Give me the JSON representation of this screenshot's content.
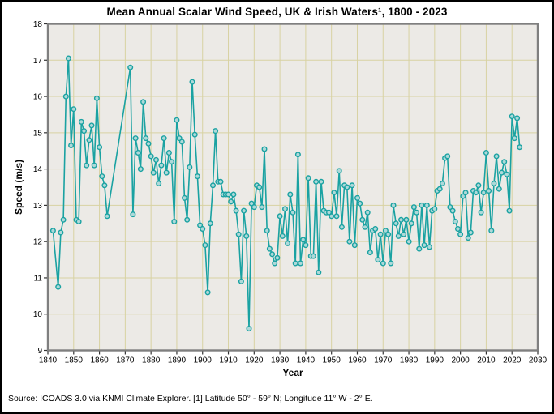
{
  "chart_data": {
    "type": "line",
    "title": "Mean Annual Scalar Wind Speed, UK & Irish Waters¹, 1800 - 2023",
    "xlabel": "Year",
    "ylabel": "Speed (m/s)",
    "source": "Source: ICOADS 3.0 via KNMI Climate Explorer. [1] Latitude 50° - 59° N; Longitude 11° W - 2° E.",
    "xlim": [
      1840,
      2030
    ],
    "ylim": [
      9,
      18
    ],
    "x_ticks": [
      1840,
      1850,
      1860,
      1870,
      1880,
      1890,
      1900,
      1910,
      1920,
      1930,
      1940,
      1950,
      1960,
      1970,
      1980,
      1990,
      2000,
      2010,
      2020,
      2030
    ],
    "y_ticks": [
      9,
      10,
      11,
      12,
      13,
      14,
      15,
      16,
      17,
      18
    ],
    "grid": true,
    "legend": "none",
    "colors": {
      "line": "#1aa2a2",
      "marker_fill": "#aed9d9",
      "grid": "#d8d2a2",
      "plot_bg": "#eceae6",
      "frame": "#7f7f7f",
      "tick": "#333333",
      "text": "#000000"
    },
    "series": [
      {
        "name": "Mean annual scalar wind speed",
        "points": [
          [
            1842,
            12.3
          ],
          [
            1844,
            10.75
          ],
          [
            1845,
            12.25
          ],
          [
            1846,
            12.6
          ],
          [
            1847,
            16.0
          ],
          [
            1848,
            17.05
          ],
          [
            1849,
            14.65
          ],
          [
            1850,
            15.65
          ],
          [
            1851,
            12.6
          ],
          [
            1852,
            12.55
          ],
          [
            1853,
            15.3
          ],
          [
            1854,
            15.05
          ],
          [
            1855,
            14.1
          ],
          [
            1856,
            14.8
          ],
          [
            1857,
            15.2
          ],
          [
            1858,
            14.1
          ],
          [
            1859,
            15.95
          ],
          [
            1860,
            14.6
          ],
          [
            1861,
            13.8
          ],
          [
            1862,
            13.55
          ],
          [
            1863,
            12.7
          ],
          [
            1872,
            16.8
          ],
          [
            1873,
            12.75
          ],
          [
            1874,
            14.85
          ],
          [
            1875,
            14.45
          ],
          [
            1876,
            14.0
          ],
          [
            1877,
            15.85
          ],
          [
            1878,
            14.85
          ],
          [
            1879,
            14.7
          ],
          [
            1880,
            14.35
          ],
          [
            1881,
            13.9
          ],
          [
            1882,
            14.25
          ],
          [
            1883,
            13.6
          ],
          [
            1884,
            14.1
          ],
          [
            1885,
            14.85
          ],
          [
            1886,
            13.9
          ],
          [
            1887,
            14.45
          ],
          [
            1888,
            14.2
          ],
          [
            1889,
            12.55
          ],
          [
            1890,
            15.35
          ],
          [
            1891,
            14.85
          ],
          [
            1892,
            14.75
          ],
          [
            1893,
            13.2
          ],
          [
            1894,
            12.6
          ],
          [
            1895,
            14.05
          ],
          [
            1896,
            16.4
          ],
          [
            1897,
            14.95
          ],
          [
            1898,
            13.8
          ],
          [
            1899,
            12.45
          ],
          [
            1900,
            12.35
          ],
          [
            1901,
            11.9
          ],
          [
            1902,
            10.6
          ],
          [
            1903,
            12.5
          ],
          [
            1904,
            13.55
          ],
          [
            1905,
            15.05
          ],
          [
            1906,
            13.65
          ],
          [
            1907,
            13.65
          ],
          [
            1908,
            13.3
          ],
          [
            1909,
            13.3
          ],
          [
            1910,
            13.3
          ],
          [
            1911,
            13.1
          ],
          [
            1912,
            13.3
          ],
          [
            1913,
            12.85
          ],
          [
            1914,
            12.2
          ],
          [
            1915,
            10.9
          ],
          [
            1916,
            12.85
          ],
          [
            1917,
            12.15
          ],
          [
            1918,
            9.6
          ],
          [
            1919,
            13.05
          ],
          [
            1920,
            12.95
          ],
          [
            1921,
            13.55
          ],
          [
            1922,
            13.5
          ],
          [
            1923,
            12.95
          ],
          [
            1924,
            14.55
          ],
          [
            1925,
            12.3
          ],
          [
            1926,
            11.8
          ],
          [
            1927,
            11.65
          ],
          [
            1928,
            11.4
          ],
          [
            1929,
            11.55
          ],
          [
            1930,
            12.7
          ],
          [
            1931,
            12.15
          ],
          [
            1932,
            12.9
          ],
          [
            1933,
            11.95
          ],
          [
            1934,
            13.3
          ],
          [
            1935,
            12.8
          ],
          [
            1936,
            11.4
          ],
          [
            1937,
            14.4
          ],
          [
            1938,
            11.4
          ],
          [
            1939,
            12.05
          ],
          [
            1940,
            11.9
          ],
          [
            1941,
            13.75
          ],
          [
            1942,
            11.6
          ],
          [
            1943,
            11.6
          ],
          [
            1944,
            13.65
          ],
          [
            1945,
            11.15
          ],
          [
            1946,
            13.65
          ],
          [
            1947,
            12.85
          ],
          [
            1948,
            12.8
          ],
          [
            1949,
            12.8
          ],
          [
            1950,
            12.7
          ],
          [
            1951,
            13.35
          ],
          [
            1952,
            12.7
          ],
          [
            1953,
            13.95
          ],
          [
            1954,
            12.4
          ],
          [
            1955,
            13.55
          ],
          [
            1956,
            13.5
          ],
          [
            1957,
            12.0
          ],
          [
            1958,
            13.55
          ],
          [
            1959,
            11.9
          ],
          [
            1960,
            13.2
          ],
          [
            1961,
            13.05
          ],
          [
            1962,
            12.6
          ],
          [
            1963,
            12.4
          ],
          [
            1964,
            12.8
          ],
          [
            1965,
            11.7
          ],
          [
            1966,
            12.3
          ],
          [
            1967,
            12.35
          ],
          [
            1968,
            11.5
          ],
          [
            1969,
            12.2
          ],
          [
            1970,
            11.4
          ],
          [
            1971,
            12.3
          ],
          [
            1972,
            12.2
          ],
          [
            1973,
            11.4
          ],
          [
            1974,
            13.0
          ],
          [
            1975,
            12.5
          ],
          [
            1976,
            12.15
          ],
          [
            1977,
            12.6
          ],
          [
            1978,
            12.2
          ],
          [
            1979,
            12.6
          ],
          [
            1980,
            12.0
          ],
          [
            1981,
            12.5
          ],
          [
            1982,
            12.95
          ],
          [
            1983,
            12.8
          ],
          [
            1984,
            11.8
          ],
          [
            1985,
            13.0
          ],
          [
            1986,
            11.9
          ],
          [
            1987,
            13.0
          ],
          [
            1988,
            11.85
          ],
          [
            1989,
            12.85
          ],
          [
            1990,
            12.9
          ],
          [
            1991,
            13.4
          ],
          [
            1992,
            13.45
          ],
          [
            1993,
            13.6
          ],
          [
            1994,
            14.3
          ],
          [
            1995,
            14.35
          ],
          [
            1996,
            12.95
          ],
          [
            1997,
            12.85
          ],
          [
            1998,
            12.55
          ],
          [
            1999,
            12.35
          ],
          [
            2000,
            12.2
          ],
          [
            2001,
            13.25
          ],
          [
            2002,
            13.35
          ],
          [
            2003,
            12.1
          ],
          [
            2004,
            12.25
          ],
          [
            2005,
            13.4
          ],
          [
            2006,
            13.35
          ],
          [
            2007,
            13.55
          ],
          [
            2008,
            12.8
          ],
          [
            2009,
            13.35
          ],
          [
            2010,
            14.45
          ],
          [
            2011,
            13.4
          ],
          [
            2012,
            12.3
          ],
          [
            2013,
            13.6
          ],
          [
            2014,
            14.35
          ],
          [
            2015,
            13.45
          ],
          [
            2016,
            13.9
          ],
          [
            2017,
            14.2
          ],
          [
            2018,
            13.85
          ],
          [
            2019,
            12.85
          ],
          [
            2020,
            15.45
          ],
          [
            2021,
            14.85
          ],
          [
            2022,
            15.4
          ],
          [
            2023,
            14.6
          ]
        ]
      }
    ]
  }
}
